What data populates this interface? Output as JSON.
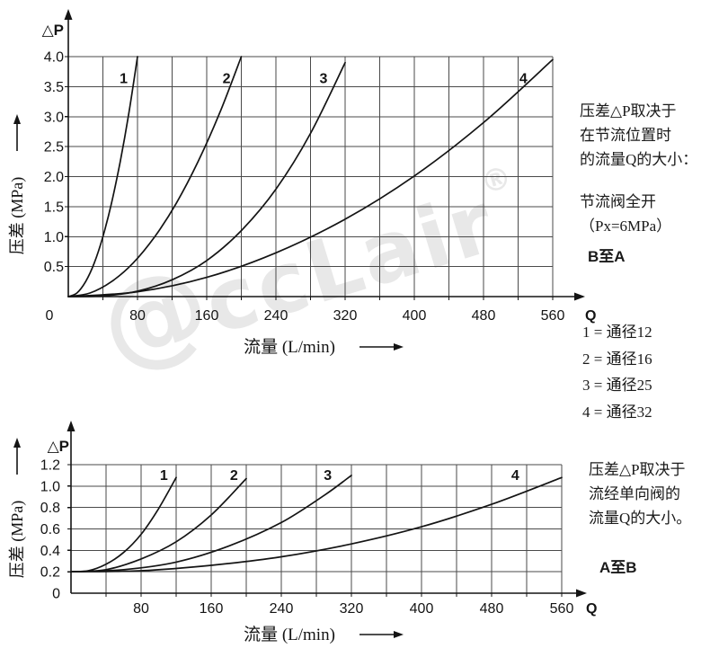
{
  "watermark": {
    "at_symbol": "@",
    "text": "ccLair",
    "registered": "®"
  },
  "chart_data": [
    {
      "type": "line",
      "id": "throttle-valve-curve",
      "axis_head_label": "△P",
      "axis_tail_label": "Q",
      "xlabel": "流量 (L/min)",
      "ylabel": "压差 (MPa)",
      "xlim": [
        0,
        560
      ],
      "ylim": [
        0,
        4.0
      ],
      "x_grid_step": 40,
      "y_grid_step": 0.5,
      "grid": true,
      "x_ticks": [
        {
          "label": "0",
          "value": 0
        },
        {
          "label": "80",
          "value": 80
        },
        {
          "label": "160",
          "value": 160
        },
        {
          "label": "240",
          "value": 240
        },
        {
          "label": "320",
          "value": 320
        },
        {
          "label": "400",
          "value": 400
        },
        {
          "label": "480",
          "value": 480
        },
        {
          "label": "560",
          "value": 560
        }
      ],
      "y_ticks": [
        {
          "label": "4.0",
          "value": 4.0
        },
        {
          "label": "3.5",
          "value": 3.5
        },
        {
          "label": "3.0",
          "value": 3.0
        },
        {
          "label": "2.5",
          "value": 2.5
        },
        {
          "label": "2.0",
          "value": 2.0
        },
        {
          "label": "1.5",
          "value": 1.5
        },
        {
          "label": "1.0",
          "value": 1.0
        },
        {
          "label": "0.5",
          "value": 0.5
        }
      ],
      "series": [
        {
          "name": "1",
          "label_at": [
            64,
            3.63
          ],
          "points": [
            [
              0,
              0
            ],
            [
              10,
              0.06
            ],
            [
              20,
              0.25
            ],
            [
              30,
              0.56
            ],
            [
              40,
              1.0
            ],
            [
              50,
              1.56
            ],
            [
              60,
              2.25
            ],
            [
              70,
              3.06
            ],
            [
              80,
              4.0
            ]
          ]
        },
        {
          "name": "2",
          "label_at": [
            183,
            3.63
          ],
          "points": [
            [
              0,
              0
            ],
            [
              25,
              0.06
            ],
            [
              50,
              0.25
            ],
            [
              75,
              0.56
            ],
            [
              100,
              1.0
            ],
            [
              125,
              1.56
            ],
            [
              150,
              2.25
            ],
            [
              175,
              3.06
            ],
            [
              200,
              4.0
            ]
          ]
        },
        {
          "name": "3",
          "label_at": [
            295,
            3.63
          ],
          "points": [
            [
              0,
              0
            ],
            [
              40,
              0.01
            ],
            [
              80,
              0.09
            ],
            [
              120,
              0.28
            ],
            [
              160,
              0.6
            ],
            [
              200,
              1.1
            ],
            [
              240,
              1.79
            ],
            [
              280,
              2.72
            ],
            [
              320,
              3.9
            ]
          ]
        },
        {
          "name": "4",
          "label_at": [
            526,
            3.63
          ],
          "points": [
            [
              0,
              0
            ],
            [
              80,
              0.08
            ],
            [
              160,
              0.32
            ],
            [
              240,
              0.73
            ],
            [
              320,
              1.29
            ],
            [
              400,
              2.01
            ],
            [
              480,
              2.9
            ],
            [
              560,
              3.95
            ]
          ]
        }
      ]
    },
    {
      "type": "line",
      "id": "check-valve-curve",
      "axis_head_label": "△P",
      "axis_tail_label": "Q",
      "xlabel": "流量 (L/min)",
      "ylabel": "压差 (MPa)",
      "xlim": [
        0,
        560
      ],
      "ylim": [
        0,
        1.2
      ],
      "x_grid_step": 40,
      "y_grid_step": 0.2,
      "grid": true,
      "x_ticks": [
        {
          "label": "80",
          "value": 80
        },
        {
          "label": "160",
          "value": 160
        },
        {
          "label": "240",
          "value": 240
        },
        {
          "label": "320",
          "value": 320
        },
        {
          "label": "400",
          "value": 400
        },
        {
          "label": "480",
          "value": 480
        },
        {
          "label": "560",
          "value": 560
        }
      ],
      "y_ticks": [
        {
          "label": "1.2",
          "value": 1.2
        },
        {
          "label": "1.0",
          "value": 1.0
        },
        {
          "label": "0.8",
          "value": 0.8
        },
        {
          "label": "0.6",
          "value": 0.6
        },
        {
          "label": "0.4",
          "value": 0.4
        },
        {
          "label": "0.2",
          "value": 0.2
        },
        {
          "label": "0",
          "value": 0
        }
      ],
      "series": [
        {
          "name": "1",
          "label_at": [
            106,
            1.1
          ],
          "points": [
            [
              0,
              0.2
            ],
            [
              20,
              0.21
            ],
            [
              40,
              0.27
            ],
            [
              60,
              0.38
            ],
            [
              80,
              0.55
            ],
            [
              100,
              0.79
            ],
            [
              120,
              1.08
            ]
          ]
        },
        {
          "name": "2",
          "label_at": [
            186,
            1.1
          ],
          "points": [
            [
              0,
              0.2
            ],
            [
              40,
              0.22
            ],
            [
              80,
              0.32
            ],
            [
              120,
              0.48
            ],
            [
              160,
              0.73
            ],
            [
              200,
              1.07
            ]
          ]
        },
        {
          "name": "3",
          "label_at": [
            293,
            1.1
          ],
          "points": [
            [
              0,
              0.2
            ],
            [
              60,
              0.22
            ],
            [
              120,
              0.29
            ],
            [
              180,
              0.44
            ],
            [
              240,
              0.66
            ],
            [
              290,
              0.92
            ],
            [
              320,
              1.1
            ]
          ]
        },
        {
          "name": "4",
          "label_at": [
            507,
            1.1
          ],
          "points": [
            [
              0,
              0.2
            ],
            [
              80,
              0.21
            ],
            [
              160,
              0.26
            ],
            [
              240,
              0.34
            ],
            [
              320,
              0.46
            ],
            [
              400,
              0.62
            ],
            [
              480,
              0.83
            ],
            [
              560,
              1.08
            ]
          ]
        }
      ]
    }
  ],
  "annotations": {
    "origin_label": "0",
    "top_note": {
      "line1": "压差△P取决于",
      "line2": "在节流位置时",
      "line3": "的流量Q的大小："
    },
    "top_condition": {
      "line1": "节流阀全开",
      "line2": "（Px=6MPa）"
    },
    "top_direction": "B至A",
    "legend": {
      "item1": "1 = 通径12",
      "item2": "2 = 通径16",
      "item3": "3 = 通径25",
      "item4": "4 = 通径32"
    },
    "bottom_note": {
      "line1": "压差△P取决于",
      "line2": "流经单向阀的",
      "line3": "流量Q的大小。"
    },
    "bottom_direction": "A至B"
  }
}
